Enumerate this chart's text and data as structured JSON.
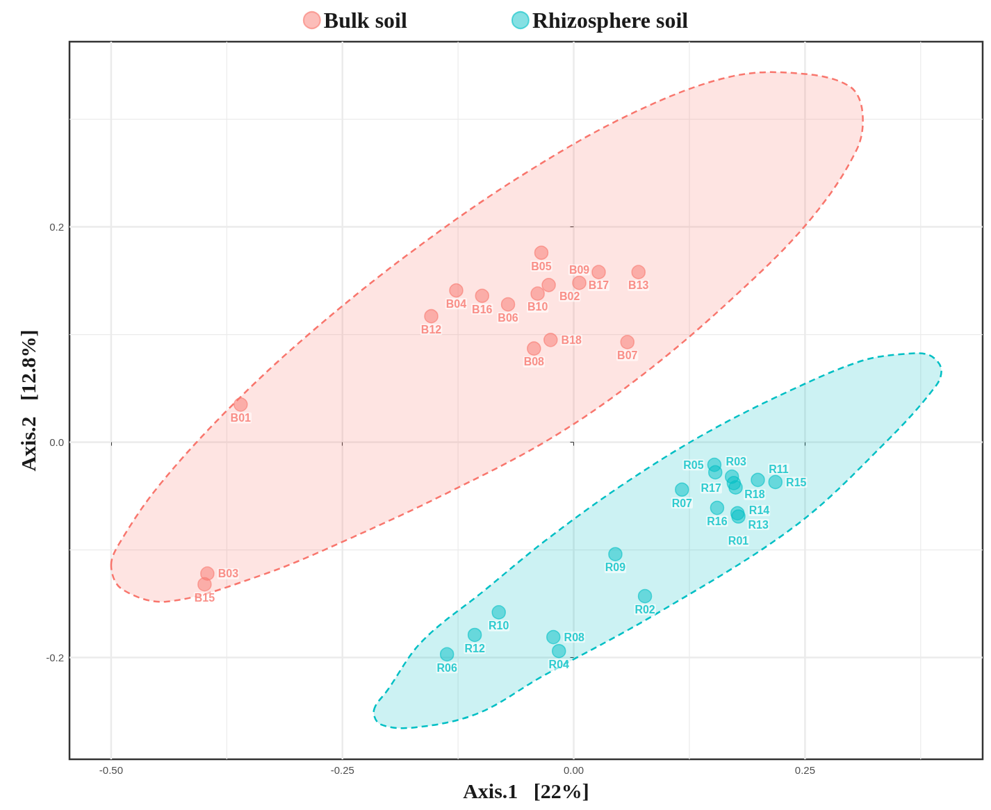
{
  "chart_data": {
    "type": "scatter",
    "xlabel": "Axis.1   [22%]",
    "ylabel": "Axis.2   [12.8%]",
    "xlim": [
      -0.545,
      0.442
    ],
    "ylim": [
      -0.2945,
      0.372
    ],
    "xticks": [
      {
        "value": -0.5,
        "label": "-0.50"
      },
      {
        "value": -0.25,
        "label": "-0.25"
      },
      {
        "value": 0,
        "label": "0.00"
      },
      {
        "value": 0.25,
        "label": "0.25"
      }
    ],
    "yticks": [
      {
        "value": -0.2,
        "label": "-0.2"
      },
      {
        "value": 0,
        "label": "0.0"
      },
      {
        "value": 0.2,
        "label": "0.2"
      }
    ],
    "grid": true,
    "legend": "top",
    "marker": "circle",
    "series": [
      {
        "name": "Bulk soil",
        "color": "#f8766d",
        "x": [
          -0.36,
          -0.396,
          -0.399,
          -0.035,
          -0.027,
          -0.039,
          -0.127,
          -0.099,
          -0.071,
          -0.154,
          0.006,
          0.027,
          0.07,
          -0.043,
          -0.025,
          0.058
        ],
        "values": [
          0.035,
          -0.122,
          -0.132,
          0.176,
          0.146,
          0.138,
          0.141,
          0.136,
          0.128,
          0.117,
          0.148,
          0.158,
          0.158,
          0.087,
          0.095,
          0.093
        ],
        "value_labels": [
          "B01",
          "B03",
          "B15",
          "B05",
          "B02",
          "B10",
          "B04",
          "B16",
          "B06",
          "B12",
          "B09",
          "B17",
          "B13",
          "B08",
          "B18",
          "B07"
        ]
      },
      {
        "name": "Rhizosphere soil",
        "color": "#00bfc4",
        "x": [
          0.117,
          0.152,
          0.153,
          0.171,
          0.173,
          0.175,
          0.199,
          0.218,
          0.155,
          0.177,
          0.178,
          0.045,
          0.077,
          -0.081,
          -0.107,
          -0.137,
          -0.022,
          -0.016
        ],
        "values": [
          -0.044,
          -0.021,
          -0.028,
          -0.032,
          -0.038,
          -0.042,
          -0.035,
          -0.037,
          -0.061,
          -0.066,
          -0.069,
          -0.104,
          -0.143,
          -0.158,
          -0.179,
          -0.197,
          -0.181,
          -0.194
        ],
        "value_labels": [
          "R07",
          "R05",
          "R03",
          "R17",
          "R18",
          "R14",
          "R11",
          "R15",
          "R16",
          "R13",
          "R01",
          "R09",
          "R02",
          "R10",
          "R12",
          "R06",
          "R08",
          "R04"
        ]
      },
      {
        "type": "area",
        "marker": "none",
        "line_style": "dashed",
        "color": "#f8766d",
        "x": [
          -0.5,
          -0.489,
          -0.448,
          -0.373,
          -0.284,
          -0.172,
          -0.052,
          0.067,
          0.172,
          0.25,
          0.299,
          0.312,
          0.306,
          0.254,
          0.172,
          0.075,
          -0.022,
          -0.134,
          -0.246,
          -0.336,
          -0.44,
          -0.489
        ],
        "values": [
          -0.114,
          -0.091,
          -0.04,
          0.031,
          0.102,
          0.179,
          0.25,
          0.307,
          0.34,
          0.342,
          0.33,
          0.307,
          0.272,
          0.205,
          0.134,
          0.063,
          0.005,
          -0.046,
          -0.091,
          -0.123,
          -0.148,
          -0.136
        ]
      },
      {
        "type": "area",
        "marker": "none",
        "line_style": "dashed",
        "color": "#00bfc4",
        "x": [
          -0.216,
          -0.201,
          -0.164,
          -0.097,
          -0.03,
          0.052,
          0.142,
          0.239,
          0.313,
          0.358,
          0.384,
          0.397,
          0.392,
          0.336,
          0.239,
          0.092,
          -0.035,
          -0.104,
          -0.172,
          -0.209
        ],
        "values": [
          -0.249,
          -0.23,
          -0.185,
          -0.138,
          -0.091,
          -0.04,
          0.008,
          0.05,
          0.076,
          0.082,
          0.081,
          0.069,
          0.053,
          -0.001,
          -0.078,
          -0.158,
          -0.218,
          -0.252,
          -0.265,
          -0.262
        ]
      }
    ]
  }
}
